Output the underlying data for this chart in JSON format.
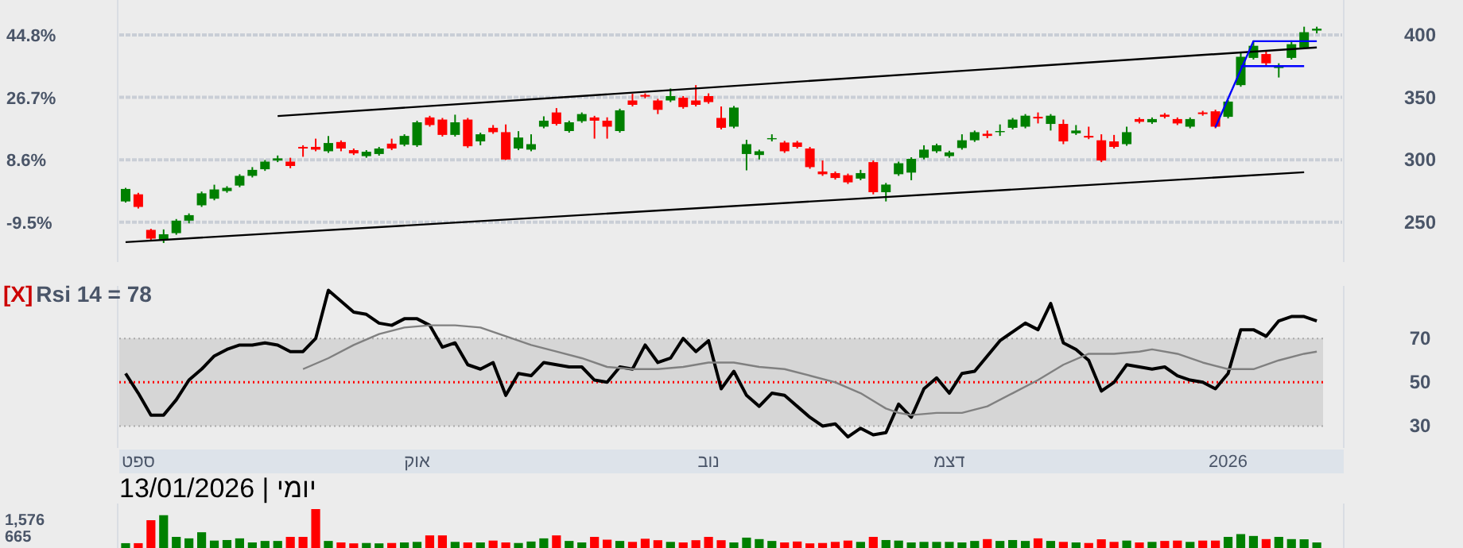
{
  "chart_data": [
    {
      "type": "candlestick",
      "ohlc": [
        [
          266.6,
          277.5,
          265.7,
          276.6
        ],
        [
          272.3,
          273.5,
          260.9,
          262.2
        ],
        [
          243.8,
          244.7,
          235.5,
          236.8
        ],
        [
          236,
          244.2,
          233.3,
          240.3
        ],
        [
          241.2,
          252.5,
          239.9,
          251.2
        ],
        [
          251.2,
          257,
          249,
          255.6
        ],
        [
          263.5,
          274.5,
          262.2,
          273.1
        ],
        [
          268.8,
          280,
          267.5,
          276.2
        ],
        [
          274.9,
          278.8,
          273.6,
          277.5
        ],
        [
          279.3,
          288.4,
          278,
          287.1
        ],
        [
          287.1,
          294.1,
          285.8,
          291.9
        ],
        [
          292.4,
          299.8,
          291.1,
          298.5
        ],
        [
          299.4,
          303.4,
          298.1,
          301.1
        ],
        [
          298.5,
          301.6,
          293.2,
          295
        ],
        [
          310.3,
          311.6,
          302.4,
          309
        ],
        [
          310.3,
          316.9,
          306.8,
          308.1
        ],
        [
          306.8,
          319,
          305.5,
          313.4
        ],
        [
          314.2,
          315.5,
          306.8,
          309
        ],
        [
          307.7,
          309,
          303.8,
          305.1
        ],
        [
          302.9,
          307.7,
          301.6,
          306.4
        ],
        [
          304.6,
          310.3,
          303.3,
          309
        ],
        [
          312.9,
          316.9,
          307.7,
          309
        ],
        [
          312.1,
          320.4,
          310.8,
          319.1
        ],
        [
          311.6,
          331.3,
          310.3,
          330
        ],
        [
          333.9,
          335.2,
          326.5,
          327.8
        ],
        [
          332.2,
          333.5,
          318.6,
          319.9
        ],
        [
          319.9,
          336.1,
          318.6,
          330
        ],
        [
          332.2,
          333.5,
          309.5,
          310.8
        ],
        [
          314.7,
          321.7,
          311.6,
          320.4
        ],
        [
          325.6,
          327.8,
          320.8,
          322.1
        ],
        [
          322.1,
          328.3,
          299.8,
          300.2
        ],
        [
          309,
          322.9,
          307.7,
          317.8
        ],
        [
          308.1,
          320.4,
          306.8,
          312.5
        ],
        [
          326.5,
          334.8,
          325.2,
          331.3
        ],
        [
          337.9,
          341.4,
          327.4,
          328.7
        ],
        [
          323,
          331.3,
          321.7,
          330
        ],
        [
          330.9,
          337.9,
          329.6,
          336.6
        ],
        [
          333.9,
          335.2,
          316.9,
          331.3
        ],
        [
          331.3,
          334,
          316.9,
          326.5
        ],
        [
          323,
          340.9,
          321.7,
          339.6
        ],
        [
          347.5,
          352.8,
          342.7,
          344
        ],
        [
          351.9,
          353.2,
          349.3,
          350.6
        ],
        [
          347.5,
          348.8,
          336.6,
          340
        ],
        [
          347.5,
          357.1,
          346.2,
          351
        ],
        [
          349.7,
          351,
          340.9,
          342.2
        ],
        [
          347.5,
          359.8,
          342.7,
          344
        ],
        [
          351,
          353.2,
          344.9,
          346.2
        ],
        [
          333.5,
          342.7,
          324.3,
          325.6
        ],
        [
          326.5,
          343.1,
          325.2,
          341.8
        ],
        [
          304.6,
          316,
          291.5,
          312.5
        ],
        [
          303.8,
          308.1,
          300.2,
          306.8
        ],
        [
          316.4,
          320.4,
          314.7,
          317.3
        ],
        [
          313.8,
          315.1,
          305.5,
          306.8
        ],
        [
          313.8,
          315.1,
          309,
          310.3
        ],
        [
          309,
          310.3,
          292.8,
          294.1
        ],
        [
          290.6,
          299.4,
          287.1,
          288.4
        ],
        [
          289.3,
          290.6,
          284.1,
          285.4
        ],
        [
          287.6,
          288.9,
          280.6,
          281.9
        ],
        [
          284.9,
          291.9,
          283.6,
          289.3
        ],
        [
          298.1,
          299.4,
          272.3,
          274
        ],
        [
          274,
          281.4,
          266.6,
          280.1
        ],
        [
          288.4,
          298.5,
          287.1,
          297.2
        ],
        [
          289.7,
          302,
          283.6,
          300.7
        ],
        [
          301.6,
          311.6,
          300.3,
          308.1
        ],
        [
          306.8,
          312.9,
          305.5,
          311.6
        ],
        [
          302.9,
          307.2,
          301.6,
          305.9
        ],
        [
          309.4,
          320.4,
          308.1,
          315.6
        ],
        [
          315.6,
          323.4,
          314.3,
          322.1
        ],
        [
          320.8,
          323.4,
          317.3,
          319.1
        ],
        [
          322.1,
          328.3,
          319.1,
          323
        ],
        [
          325.6,
          333.5,
          324.3,
          332.2
        ],
        [
          326.5,
          336.6,
          325.2,
          335.3
        ],
        [
          334.4,
          337.9,
          329.1,
          333.1
        ],
        [
          328.7,
          336.6,
          323.4,
          335.3
        ],
        [
          328.7,
          332.2,
          312.5,
          314.7
        ],
        [
          321.2,
          327.8,
          319.9,
          323.4
        ],
        [
          319.1,
          326.5,
          316.5,
          317.8
        ],
        [
          315.6,
          320.4,
          298.1,
          299.4
        ],
        [
          314.7,
          319.9,
          309,
          310.3
        ],
        [
          312.5,
          326.5,
          311.2,
          322.1
        ],
        [
          332.6,
          333.9,
          329.1,
          330.4
        ],
        [
          330,
          333.9,
          328.7,
          332.6
        ],
        [
          336.1,
          337.4,
          333.1,
          334.4
        ],
        [
          332.6,
          333.9,
          327.8,
          329.1
        ],
        [
          326.5,
          333.9,
          325.2,
          332.6
        ],
        [
          337.9,
          339.2,
          335.3,
          336.6
        ],
        [
          338.8,
          340.1,
          325.2,
          326.5
        ],
        [
          334.4,
          347.9,
          333.1,
          346.6
        ],
        [
          359.8,
          386,
          358.5,
          382.5
        ],
        [
          381.6,
          395.6,
          380.3,
          391.3
        ],
        [
          384.7,
          386.9,
          375.1,
          377.3
        ],
        [
          373.5,
          377.3,
          365.9,
          375
        ],
        [
          381.6,
          395.6,
          380.3,
          392.6
        ],
        [
          389.9,
          406.6,
          388.6,
          402.2
        ],
        [
          403.5,
          406.6,
          401.3,
          405
        ]
      ],
      "colors": [
        "#008000",
        "#ff0000",
        "#ff0000",
        "#008000",
        "#008000",
        "#008000",
        "#008000",
        "#008000",
        "#008000",
        "#008000",
        "#008000",
        "#008000",
        "#008000",
        "#ff0000",
        "#ff0000",
        "#ff0000",
        "#008000",
        "#ff0000",
        "#ff0000",
        "#008000",
        "#008000",
        "#ff0000",
        "#008000",
        "#008000",
        "#ff0000",
        "#ff0000",
        "#008000",
        "#ff0000",
        "#008000",
        "#ff0000",
        "#ff0000",
        "#008000",
        "#008000",
        "#008000",
        "#ff0000",
        "#008000",
        "#008000",
        "#ff0000",
        "#ff0000",
        "#008000",
        "#ff0000",
        "#ff0000",
        "#ff0000",
        "#008000",
        "#ff0000",
        "#ff0000",
        "#ff0000",
        "#ff0000",
        "#008000",
        "#008000",
        "#008000",
        "#008000",
        "#ff0000",
        "#ff0000",
        "#ff0000",
        "#ff0000",
        "#ff0000",
        "#ff0000",
        "#008000",
        "#ff0000",
        "#008000",
        "#008000",
        "#008000",
        "#008000",
        "#008000",
        "#008000",
        "#008000",
        "#008000",
        "#ff0000",
        "#008000",
        "#008000",
        "#008000",
        "#ff0000",
        "#008000",
        "#ff0000",
        "#008000",
        "#ff0000",
        "#ff0000",
        "#ff0000",
        "#008000",
        "#ff0000",
        "#008000",
        "#ff0000",
        "#ff0000",
        "#008000",
        "#ff0000",
        "#ff0000",
        "#008000",
        "#008000",
        "#008000",
        "#ff0000",
        "#008000",
        "#008000",
        "#008000",
        "#008000"
      ],
      "series": [
        {
          "type": "line",
          "color": "#000000",
          "values": [
            null,
            null,
            null,
            null,
            null,
            null,
            null,
            null,
            null,
            null,
            null,
            null,
            335,
            null,
            null,
            null,
            null,
            null,
            null,
            null,
            null,
            null,
            null,
            null,
            null,
            null,
            null,
            null,
            null,
            null,
            null,
            null,
            null,
            null,
            null,
            null,
            null,
            null,
            null,
            null,
            null,
            null,
            null,
            null,
            null,
            null,
            null,
            null,
            null,
            null,
            null,
            null,
            null,
            null,
            null,
            null,
            null,
            null,
            null,
            null,
            null,
            null,
            null,
            null,
            null,
            null,
            null,
            null,
            null,
            null,
            null,
            null,
            null,
            null,
            null,
            null,
            null,
            null,
            null,
            null,
            null,
            null,
            null,
            null,
            null,
            null,
            null,
            null,
            null,
            null,
            null,
            null,
            null,
            null,
            390
          ]
        },
        {
          "type": "line",
          "color": "#000000",
          "values": [
            234,
            null,
            null,
            null,
            null,
            null,
            null,
            null,
            null,
            null,
            null,
            null,
            null,
            null,
            null,
            null,
            null,
            null,
            null,
            null,
            null,
            null,
            null,
            null,
            null,
            null,
            null,
            null,
            null,
            null,
            null,
            null,
            null,
            null,
            null,
            null,
            null,
            null,
            null,
            null,
            null,
            null,
            null,
            null,
            null,
            null,
            null,
            null,
            null,
            null,
            null,
            null,
            null,
            null,
            null,
            null,
            null,
            null,
            null,
            null,
            null,
            null,
            null,
            null,
            null,
            null,
            null,
            null,
            null,
            null,
            null,
            null,
            null,
            null,
            null,
            null,
            null,
            null,
            null,
            null,
            null,
            null,
            null,
            null,
            null,
            null,
            null,
            null,
            null,
            null,
            null,
            null,
            null,
            290,
            null
          ]
        },
        {
          "type": "line",
          "color": "#0000ff",
          "values": [
            null,
            null,
            null,
            null,
            null,
            null,
            null,
            null,
            null,
            null,
            null,
            null,
            null,
            null,
            null,
            null,
            null,
            null,
            null,
            null,
            null,
            null,
            null,
            null,
            null,
            null,
            null,
            null,
            null,
            null,
            null,
            null,
            null,
            null,
            null,
            null,
            null,
            null,
            null,
            null,
            null,
            null,
            null,
            null,
            null,
            null,
            null,
            null,
            null,
            null,
            null,
            null,
            null,
            null,
            null,
            null,
            null,
            null,
            null,
            null,
            null,
            null,
            null,
            null,
            null,
            null,
            null,
            null,
            null,
            null,
            null,
            null,
            null,
            null,
            null,
            null,
            null,
            null,
            null,
            null,
            null,
            null,
            null,
            null,
            null,
            null,
            326,
            null,
            null,
            395,
            null,
            null,
            null,
            null,
            395
          ]
        },
        {
          "type": "line",
          "color": "#0000ff",
          "values": [
            null,
            null,
            null,
            null,
            null,
            null,
            null,
            null,
            null,
            null,
            null,
            null,
            null,
            null,
            null,
            null,
            null,
            null,
            null,
            null,
            null,
            null,
            null,
            null,
            null,
            null,
            null,
            null,
            null,
            null,
            null,
            null,
            null,
            null,
            null,
            null,
            null,
            null,
            null,
            null,
            null,
            null,
            null,
            null,
            null,
            null,
            null,
            null,
            null,
            null,
            null,
            null,
            null,
            null,
            null,
            null,
            null,
            null,
            null,
            null,
            null,
            null,
            null,
            null,
            null,
            null,
            null,
            null,
            null,
            null,
            null,
            null,
            null,
            null,
            null,
            null,
            null,
            null,
            null,
            null,
            null,
            null,
            null,
            null,
            null,
            null,
            null,
            null,
            375,
            null,
            null,
            null,
            null,
            375,
            null
          ]
        }
      ],
      "ylim": [
        218,
        428
      ],
      "yticks": [
        250,
        300,
        350,
        400
      ],
      "y2lim": [
        -21.1,
        55
      ],
      "y2ticks": [
        {
          "value": -9.5,
          "label": "-9.5%"
        },
        {
          "value": 8.6,
          "label": "8.6%"
        },
        {
          "value": 26.7,
          "label": "26.7%"
        },
        {
          "value": 44.8,
          "label": "44.8%"
        }
      ],
      "tick_labels": "y",
      "grid": "y"
    },
    {
      "type": "line",
      "title": "Rsi 14 = 78",
      "annotations": [
        "[X]"
      ],
      "categories": [
        null,
        "ספט",
        null,
        null,
        null,
        null,
        null,
        null,
        null,
        null,
        null,
        null,
        null,
        null,
        null,
        null,
        null,
        null,
        null,
        null,
        null,
        null,
        null,
        "אוק",
        null,
        null,
        null,
        null,
        null,
        null,
        null,
        null,
        null,
        null,
        null,
        null,
        null,
        null,
        null,
        null,
        null,
        null,
        null,
        null,
        null,
        null,
        "נוב",
        null,
        null,
        null,
        null,
        null,
        null,
        null,
        null,
        null,
        null,
        null,
        null,
        null,
        null,
        null,
        null,
        null,
        null,
        "דצמ",
        null,
        null,
        null,
        null,
        null,
        null,
        null,
        null,
        null,
        null,
        null,
        null,
        null,
        null,
        null,
        null,
        null,
        null,
        null,
        null,
        null,
        "2026",
        null,
        null,
        null,
        null,
        null,
        null,
        null
      ],
      "series": [
        {
          "color": "#000000",
          "values": [
            54,
            45,
            35,
            35,
            42,
            51,
            56,
            62,
            65,
            67,
            67,
            68,
            67,
            64,
            64,
            70,
            92,
            87,
            82,
            81,
            77,
            76,
            79,
            79,
            76,
            66,
            68,
            58,
            56,
            59,
            44,
            54,
            53,
            59,
            58,
            57,
            57,
            51,
            50,
            57,
            56,
            67,
            59,
            61,
            70,
            64,
            69,
            47,
            55,
            44,
            39,
            45,
            44,
            39,
            34,
            30,
            31,
            25,
            29,
            26,
            27,
            40,
            34,
            47,
            52,
            45,
            54,
            55,
            62,
            69,
            73,
            77,
            74,
            86,
            68,
            65,
            60,
            46,
            50,
            58,
            57,
            56,
            57,
            53,
            51,
            50,
            47,
            54,
            74,
            74,
            71,
            78,
            80,
            80,
            78
          ]
        },
        {
          "color": "#808080",
          "values": [
            null,
            null,
            null,
            null,
            null,
            null,
            null,
            null,
            null,
            null,
            null,
            null,
            null,
            null,
            56,
            null,
            61,
            null,
            67,
            null,
            72,
            null,
            75,
            null,
            76,
            null,
            76,
            null,
            75,
            null,
            71,
            null,
            67,
            null,
            64,
            null,
            61,
            null,
            57,
            null,
            56,
            null,
            56,
            null,
            57,
            null,
            59,
            null,
            59,
            null,
            57,
            null,
            56,
            null,
            53,
            null,
            50,
            null,
            45,
            null,
            38,
            36,
            35,
            null,
            36,
            null,
            36,
            null,
            39,
            null,
            45,
            null,
            51,
            null,
            58,
            null,
            63,
            null,
            63,
            null,
            64,
            65,
            null,
            63,
            null,
            59,
            null,
            56,
            null,
            56,
            null,
            60,
            null,
            63,
            64
          ]
        }
      ],
      "ylim": [
        20,
        94
      ],
      "yticks": [
        30,
        50,
        70
      ],
      "bands": [
        {
          "axis": "y",
          "from": 30,
          "to": 70,
          "color": "#d6d6d6"
        }
      ],
      "ref_lines": [
        {
          "axis": "y",
          "value": 50,
          "color": "#ff0000",
          "line_style": "dotted"
        }
      ]
    },
    {
      "type": "bar",
      "annotations": [
        "13/01/2026 | יומי"
      ],
      "values": [
        260,
        260,
        1500,
        1770,
        600,
        520,
        850,
        400,
        430,
        520,
        300,
        380,
        380,
        600,
        600,
        2100,
        380,
        300,
        250,
        270,
        250,
        270,
        300,
        330,
        680,
        680,
        330,
        300,
        300,
        400,
        300,
        270,
        350,
        520,
        680,
        380,
        300,
        600,
        450,
        380,
        330,
        500,
        420,
        330,
        300,
        420,
        600,
        420,
        300,
        560,
        480,
        380,
        300,
        350,
        250,
        270,
        330,
        400,
        330,
        600,
        430,
        400,
        300,
        330,
        330,
        330,
        300,
        380,
        480,
        380,
        430,
        380,
        520,
        380,
        330,
        300,
        270,
        470,
        330,
        400,
        300,
        330,
        380,
        400,
        330,
        400,
        400,
        600,
        750,
        650,
        480,
        600,
        480,
        470,
        300
      ],
      "colors": [
        "#008000",
        "#ff0000",
        "#ff0000",
        "#008000",
        "#008000",
        "#008000",
        "#008000",
        "#008000",
        "#008000",
        "#008000",
        "#008000",
        "#008000",
        "#008000",
        "#ff0000",
        "#ff0000",
        "#ff0000",
        "#008000",
        "#ff0000",
        "#ff0000",
        "#008000",
        "#008000",
        "#ff0000",
        "#008000",
        "#008000",
        "#ff0000",
        "#ff0000",
        "#008000",
        "#ff0000",
        "#008000",
        "#ff0000",
        "#ff0000",
        "#008000",
        "#008000",
        "#008000",
        "#ff0000",
        "#008000",
        "#008000",
        "#ff0000",
        "#ff0000",
        "#008000",
        "#ff0000",
        "#ff0000",
        "#ff0000",
        "#008000",
        "#ff0000",
        "#ff0000",
        "#ff0000",
        "#ff0000",
        "#008000",
        "#008000",
        "#008000",
        "#008000",
        "#ff0000",
        "#ff0000",
        "#ff0000",
        "#ff0000",
        "#ff0000",
        "#ff0000",
        "#008000",
        "#ff0000",
        "#008000",
        "#008000",
        "#008000",
        "#008000",
        "#008000",
        "#008000",
        "#008000",
        "#008000",
        "#ff0000",
        "#008000",
        "#008000",
        "#008000",
        "#ff0000",
        "#008000",
        "#ff0000",
        "#008000",
        "#ff0000",
        "#ff0000",
        "#ff0000",
        "#008000",
        "#ff0000",
        "#008000",
        "#ff0000",
        "#ff0000",
        "#008000",
        "#ff0000",
        "#ff0000",
        "#008000",
        "#008000",
        "#008000",
        "#ff0000",
        "#008000",
        "#008000",
        "#008000",
        "#008000"
      ],
      "ylim": [
        0,
        2400
      ],
      "yticks": [
        {
          "value": 665,
          "label": "665"
        },
        {
          "value": 1576,
          "label": "1,576"
        }
      ],
      "tick_labels": "y"
    }
  ]
}
